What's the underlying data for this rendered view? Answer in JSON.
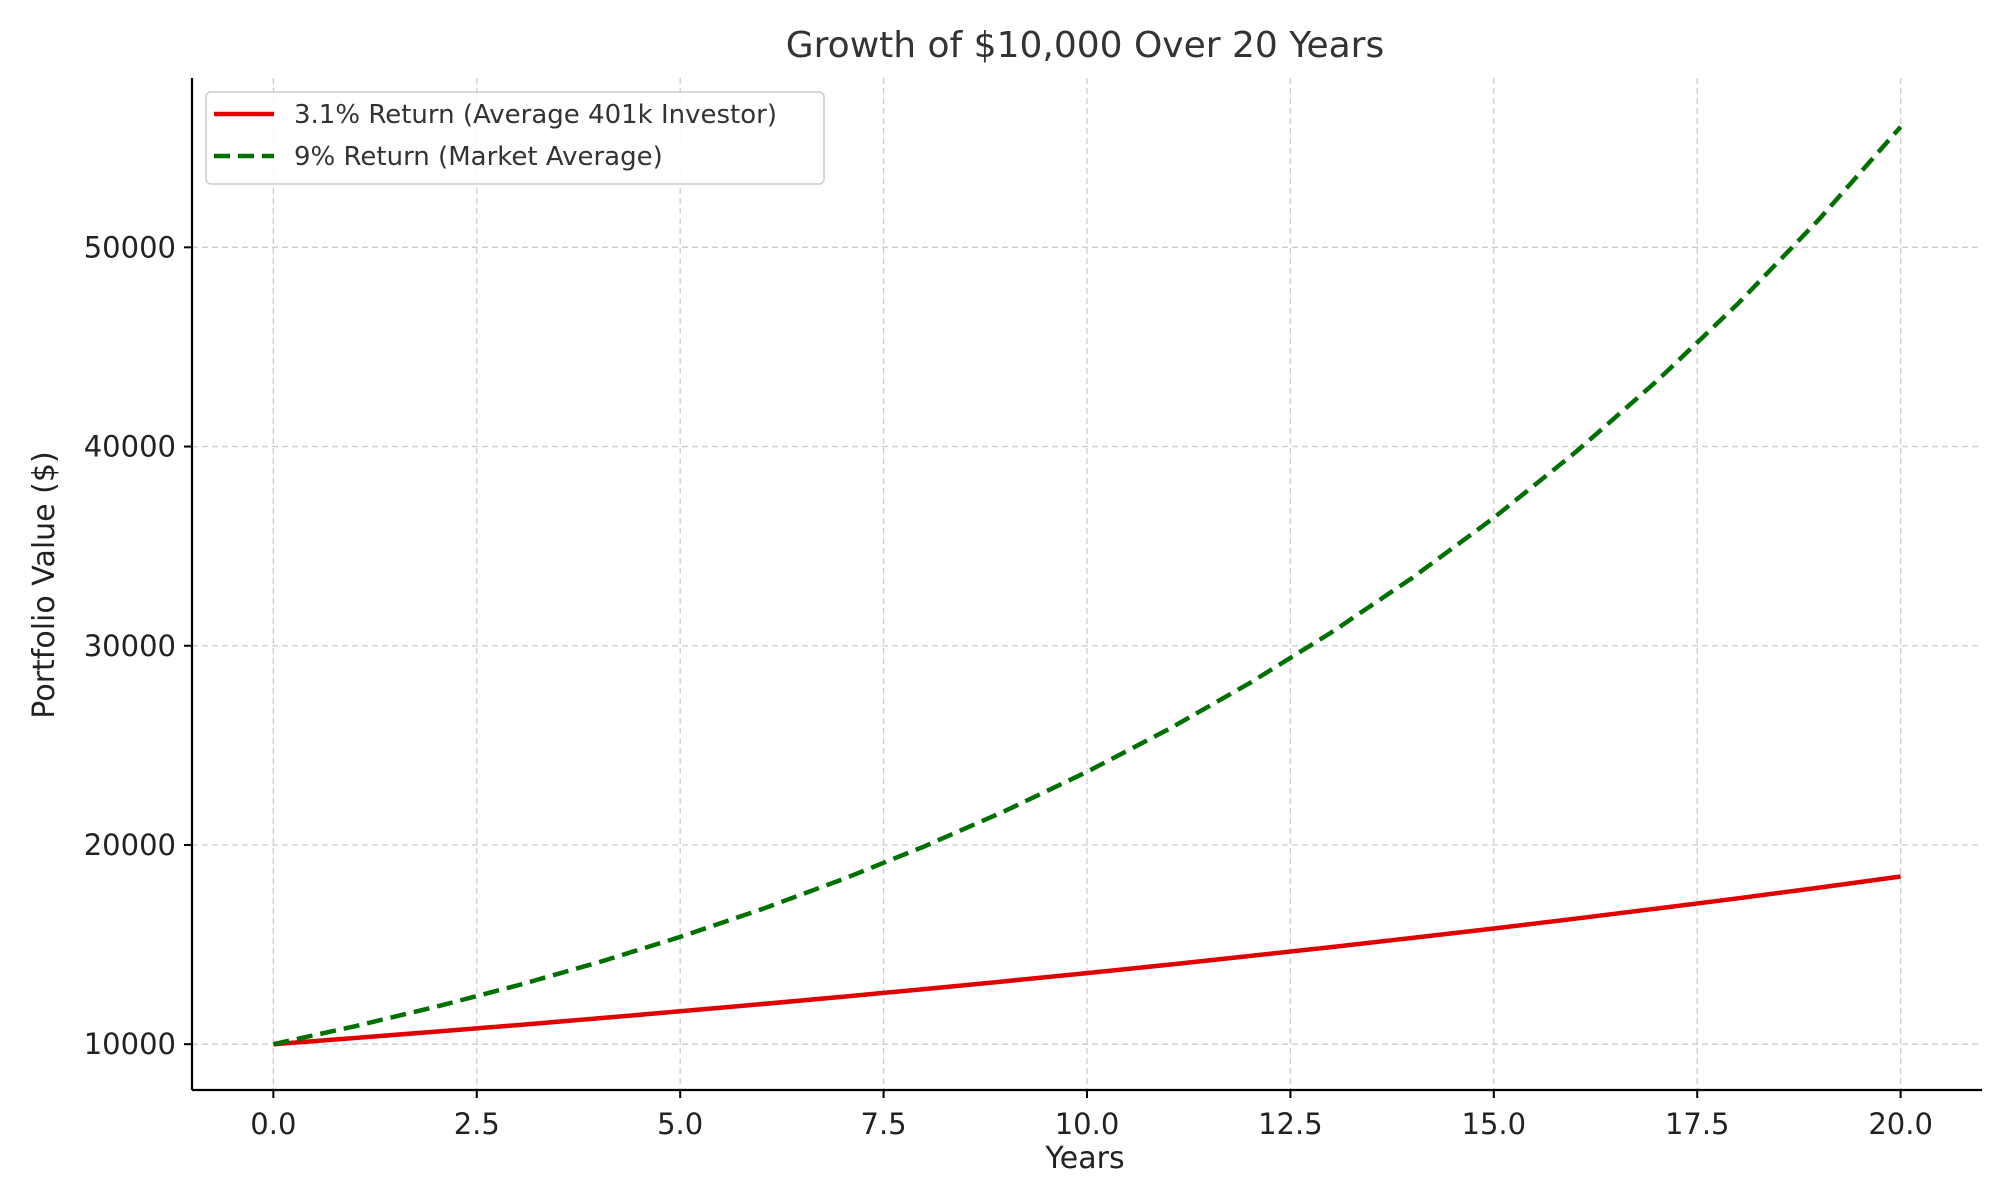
{
  "chart_data": {
    "type": "line",
    "title": "Growth of $10,000 Over 20 Years",
    "xlabel": "Years",
    "ylabel": "Portfolio Value ($)",
    "xlim": [
      -1,
      21
    ],
    "ylim": [
      7700,
      58500
    ],
    "x_ticks": [
      0,
      2.5,
      5,
      7.5,
      10,
      12.5,
      15,
      17.5,
      20
    ],
    "x_tick_labels": [
      "0.0",
      "2.5",
      "5.0",
      "7.5",
      "10.0",
      "12.5",
      "15.0",
      "17.5",
      "20.0"
    ],
    "y_ticks": [
      10000,
      20000,
      30000,
      40000,
      50000
    ],
    "y_tick_labels": [
      "10000",
      "20000",
      "30000",
      "40000",
      "50000"
    ],
    "grid": true,
    "legend_position": "top-left",
    "x": [
      0,
      1,
      2,
      3,
      4,
      5,
      6,
      7,
      8,
      9,
      10,
      11,
      12,
      13,
      14,
      15,
      16,
      17,
      18,
      19,
      20
    ],
    "series": [
      {
        "name": "3.1% Return (Average 401k Investor)",
        "color": "#e00000",
        "style": "solid",
        "values": [
          10000,
          10310,
          10630,
          10959,
          11299,
          11649,
          12010,
          12383,
          12766,
          13162,
          13570,
          13991,
          14425,
          14872,
          15333,
          15808,
          16298,
          16804,
          17325,
          17862,
          18416
        ]
      },
      {
        "name": "9% Return (Market Average)",
        "color": "#007000",
        "style": "dashed",
        "values": [
          10000,
          10900,
          11881,
          12950,
          14116,
          15386,
          16771,
          18280,
          19926,
          21719,
          23674,
          25804,
          28127,
          30658,
          33417,
          36425,
          39703,
          43276,
          47171,
          51417,
          56044
        ]
      }
    ]
  }
}
